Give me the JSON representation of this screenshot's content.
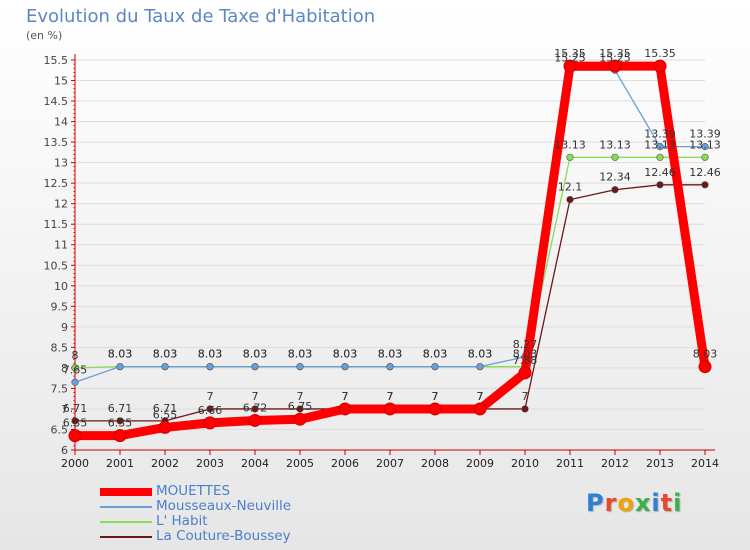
{
  "title": "Evolution du Taux de Taxe d'Habitation",
  "ylabel": "(en %)",
  "logo_text": "Proxiti",
  "colors": {
    "title": "#5b87c5",
    "axis": "#cc0000",
    "grid": "#dddddd",
    "label": "#444444"
  },
  "chart_data": {
    "type": "line",
    "title": "Evolution du Taux de Taxe d'Habitation",
    "xlabel": "",
    "ylabel": "(en %)",
    "x": [
      "2000",
      "2001",
      "2002",
      "2003",
      "2004",
      "2005",
      "2006",
      "2007",
      "2008",
      "2009",
      "2010",
      "2011",
      "2012",
      "2013",
      "2014"
    ],
    "ylim": [
      6,
      15.5
    ],
    "yticks": [
      "6",
      "6.5",
      "7",
      "7.5",
      "8",
      "8.5",
      "9",
      "9.5",
      "10",
      "10.5",
      "11",
      "11.5",
      "12",
      "12.5",
      "13",
      "13.5",
      "14",
      "14.5",
      "15",
      "15.5"
    ],
    "legend_position": "bottom-left",
    "series": [
      {
        "name": "MOUETTES",
        "color": "#ff0000",
        "values": [
          6.35,
          6.35,
          6.55,
          6.66,
          6.72,
          6.75,
          7,
          7,
          7,
          7,
          7.88,
          15.35,
          15.35,
          15.35,
          8.03
        ],
        "labels": [
          "6.35",
          "6.35",
          "6.55",
          "6.66",
          "6.72",
          "6.75",
          "7",
          "7",
          "7",
          "7",
          "7.88",
          "15.35",
          "15.35",
          "15.35",
          "8.03"
        ]
      },
      {
        "name": "Mousseaux-Neuville",
        "color": "#6a9fd8",
        "values": [
          7.65,
          8.03,
          8.03,
          8.03,
          8.03,
          8.03,
          8.03,
          8.03,
          8.03,
          8.03,
          8.27,
          15.25,
          15.25,
          13.39,
          13.39
        ],
        "labels": [
          "7.65",
          "8.03",
          "8.03",
          "8.03",
          "8.03",
          "8.03",
          "8.03",
          "8.03",
          "8.03",
          "8.03",
          "8.27",
          "15.25",
          "15.25",
          "13.39",
          "13.39"
        ]
      },
      {
        "name": "L' Habit",
        "color": "#88dd55",
        "values": [
          8,
          8.03,
          8.03,
          8.03,
          8.03,
          8.03,
          8.03,
          8.03,
          8.03,
          8.03,
          8.03,
          13.13,
          13.13,
          13.13,
          13.13
        ],
        "labels": [
          "8",
          "8.03",
          "8.03",
          "8.03",
          "8.03",
          "8.03",
          "8.03",
          "8.03",
          "8.03",
          "8.03",
          "8.03",
          "13.13",
          "13.13",
          "13.13",
          "13.13"
        ]
      },
      {
        "name": "La Couture-Boussey",
        "color": "#6b1818",
        "values": [
          6.71,
          6.71,
          6.71,
          7,
          7,
          7,
          7,
          7,
          7,
          7,
          7,
          12.1,
          12.34,
          12.46,
          12.46
        ],
        "labels": [
          "6.71",
          "6.71",
          "6.71",
          "7",
          "7",
          "7",
          "7",
          "7",
          "7",
          "7",
          "7",
          "12.1",
          "12.34",
          "12.46",
          "12.46"
        ]
      }
    ]
  }
}
